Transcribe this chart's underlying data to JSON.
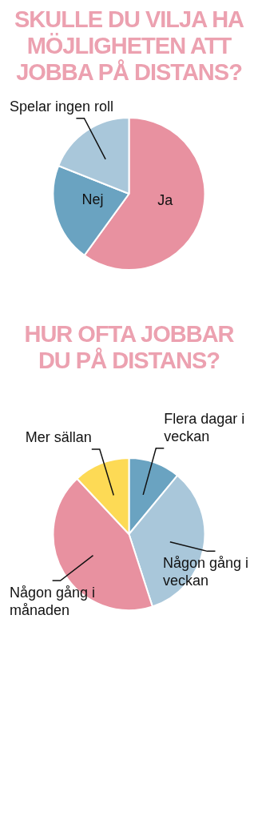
{
  "chart_data": [
    {
      "type": "pie",
      "title": "SKULLE DU VILJA HA MÖJLIGHETEN ATT JOBBA PÅ DISTANS?",
      "categories": [
        "Ja",
        "Nej",
        "Spelar ingen roll"
      ],
      "values": [
        60,
        21,
        19
      ],
      "colors": [
        "#e891a0",
        "#6aa3c1",
        "#a9c7da"
      ]
    },
    {
      "type": "pie",
      "title": "HUR OFTA JOBBAR DU PÅ DISTANS?",
      "categories": [
        "Flera dagar i veckan",
        "Någon gång i veckan",
        "Någon gång i månaden",
        "Mer sällan"
      ],
      "values": [
        11,
        34,
        43,
        12
      ],
      "colors": [
        "#6aa3c1",
        "#a9c7da",
        "#e891a0",
        "#fdda55"
      ]
    }
  ]
}
